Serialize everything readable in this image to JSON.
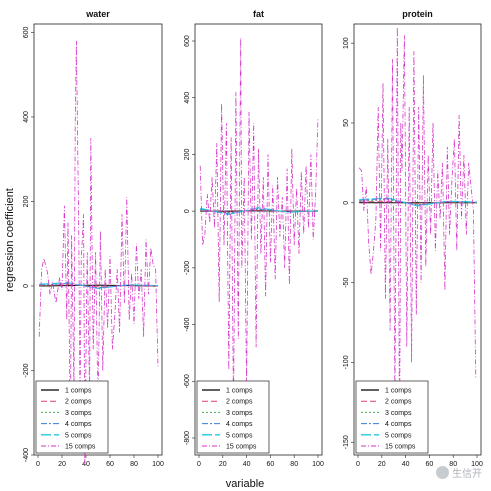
{
  "chart_data": {
    "type": "line",
    "xlabel": "variable",
    "ylabel": "regression coefficient",
    "legend_position": "bottom-left",
    "series_names": [
      "1 comps",
      "2 comps",
      "3 comps",
      "4 comps",
      "5 comps",
      "15 comps"
    ],
    "series_colors": [
      "#000000",
      "#e0406a",
      "#3cb54a",
      "#3a7be0",
      "#27c4e0",
      "#d633c9"
    ],
    "panels": [
      {
        "title": "water",
        "xlim": [
          0,
          100
        ],
        "ylim": [
          -400,
          620
        ],
        "xticks": [
          0,
          20,
          40,
          60,
          80,
          100
        ],
        "yticks": [
          -400,
          -200,
          0,
          200,
          400,
          600
        ],
        "series": [
          {
            "name": "1 comps",
            "x": [
              1,
              25,
              50,
              75,
              100
            ],
            "y": [
              0,
              1,
              2,
              1,
              0
            ]
          },
          {
            "name": "2 comps",
            "x": [
              1,
              25,
              50,
              75,
              100
            ],
            "y": [
              1,
              3,
              -2,
              1,
              0
            ]
          },
          {
            "name": "3 comps",
            "x": [
              1,
              25,
              50,
              75,
              100
            ],
            "y": [
              2,
              5,
              -4,
              2,
              1
            ]
          },
          {
            "name": "4 comps",
            "x": [
              1,
              25,
              50,
              75,
              100
            ],
            "y": [
              3,
              6,
              -5,
              2,
              1
            ]
          },
          {
            "name": "5 comps",
            "x": [
              1,
              25,
              50,
              75,
              100
            ],
            "y": [
              4,
              8,
              -6,
              3,
              1
            ]
          },
          {
            "name": "15 comps",
            "x": [
              1,
              3,
              5,
              8,
              10,
              12,
              15,
              18,
              20,
              22,
              24,
              25,
              27,
              28,
              30,
              31,
              32,
              34,
              35,
              36,
              38,
              39,
              41,
              43,
              44,
              46,
              48,
              50,
              52,
              54,
              56,
              58,
              60,
              62,
              64,
              66,
              68,
              70,
              72,
              74,
              76,
              78,
              80,
              82,
              84,
              86,
              88,
              90,
              92,
              94,
              96,
              98,
              100
            ],
            "y": [
              -120,
              40,
              65,
              30,
              -20,
              10,
              -40,
              20,
              -10,
              190,
              -80,
              150,
              -350,
              120,
              -250,
              380,
              580,
              120,
              -300,
              60,
              170,
              -420,
              80,
              -260,
              350,
              -150,
              80,
              -290,
              130,
              -200,
              40,
              -100,
              70,
              -150,
              -70,
              40,
              -110,
              170,
              -40,
              210,
              -80,
              30,
              -90,
              100,
              -30,
              40,
              -120,
              110,
              -20,
              90,
              50,
              40,
              -190
            ]
          }
        ]
      },
      {
        "title": "fat",
        "xlim": [
          0,
          100
        ],
        "ylim": [
          -860,
          660
        ],
        "xticks": [
          0,
          20,
          40,
          60,
          80,
          100
        ],
        "yticks": [
          -800,
          -600,
          -400,
          -200,
          0,
          200,
          400,
          600
        ],
        "series": [
          {
            "name": "1 comps",
            "x": [
              1,
              25,
              50,
              75,
              100
            ],
            "y": [
              0,
              0,
              1,
              0,
              0
            ]
          },
          {
            "name": "2 comps",
            "x": [
              1,
              25,
              50,
              75,
              100
            ],
            "y": [
              2,
              -3,
              3,
              -1,
              0
            ]
          },
          {
            "name": "3 comps",
            "x": [
              1,
              25,
              50,
              75,
              100
            ],
            "y": [
              4,
              -5,
              5,
              -2,
              1
            ]
          },
          {
            "name": "4 comps",
            "x": [
              1,
              25,
              50,
              75,
              100
            ],
            "y": [
              6,
              -8,
              8,
              -3,
              1
            ]
          },
          {
            "name": "5 comps",
            "x": [
              1,
              25,
              50,
              75,
              100
            ],
            "y": [
              10,
              -12,
              12,
              -4,
              2
            ]
          },
          {
            "name": "15 comps",
            "x": [
              1,
              3,
              5,
              7,
              9,
              11,
              13,
              15,
              17,
              19,
              21,
              23,
              25,
              27,
              29,
              31,
              33,
              35,
              36,
              38,
              40,
              42,
              44,
              46,
              48,
              50,
              52,
              54,
              56,
              58,
              60,
              62,
              64,
              66,
              68,
              70,
              72,
              74,
              76,
              78,
              80,
              82,
              84,
              86,
              88,
              90,
              92,
              94,
              96,
              98,
              100
            ],
            "y": [
              160,
              -120,
              -80,
              60,
              -40,
              120,
              -60,
              240,
              -320,
              380,
              -120,
              310,
              -560,
              260,
              -700,
              420,
              -450,
              610,
              -200,
              120,
              -620,
              350,
              -100,
              310,
              -480,
              220,
              -150,
              120,
              -300,
              200,
              -180,
              90,
              -240,
              120,
              -90,
              50,
              -200,
              150,
              -260,
              220,
              -120,
              80,
              -150,
              140,
              -80,
              160,
              -60,
              200,
              -100,
              60,
              330
            ]
          }
        ]
      },
      {
        "title": "protein",
        "xlim": [
          0,
          100
        ],
        "ylim": [
          -158,
          112
        ],
        "xticks": [
          0,
          20,
          40,
          60,
          80,
          100
        ],
        "yticks": [
          -150,
          -100,
          -50,
          0,
          50,
          100
        ],
        "series": [
          {
            "name": "1 comps",
            "x": [
              1,
              25,
              50,
              75,
              100
            ],
            "y": [
              0,
              0,
              0,
              0,
              0
            ]
          },
          {
            "name": "2 comps",
            "x": [
              1,
              25,
              50,
              75,
              100
            ],
            "y": [
              0.5,
              1,
              -0.5,
              0.3,
              0
            ]
          },
          {
            "name": "3 comps",
            "x": [
              1,
              25,
              50,
              75,
              100
            ],
            "y": [
              1,
              2,
              -1,
              0.5,
              0
            ]
          },
          {
            "name": "4 comps",
            "x": [
              1,
              25,
              50,
              75,
              100
            ],
            "y": [
              1.5,
              2.5,
              -1.5,
              0.8,
              0.3
            ]
          },
          {
            "name": "5 comps",
            "x": [
              1,
              25,
              50,
              75,
              100
            ],
            "y": [
              2,
              3,
              -2,
              1,
              0.5
            ]
          },
          {
            "name": "15 comps",
            "x": [
              1,
              3,
              5,
              7,
              9,
              11,
              13,
              15,
              17,
              19,
              21,
              23,
              25,
              27,
              29,
              31,
              33,
              35,
              36,
              37,
              39,
              41,
              43,
              45,
              47,
              49,
              51,
              53,
              55,
              57,
              59,
              61,
              63,
              65,
              67,
              69,
              71,
              73,
              75,
              77,
              79,
              81,
              83,
              85,
              87,
              89,
              91,
              93,
              95,
              97,
              99
            ],
            "y": [
              22,
              20,
              -5,
              10,
              -25,
              -45,
              -30,
              -10,
              60,
              -30,
              75,
              -60,
              40,
              -80,
              90,
              -120,
              110,
              -150,
              50,
              20,
              105,
              -90,
              60,
              -100,
              95,
              -70,
              60,
              -50,
              80,
              -40,
              30,
              -20,
              50,
              -30,
              20,
              -10,
              25,
              -55,
              35,
              -20,
              15,
              40,
              -30,
              55,
              -10,
              30,
              -20,
              25,
              10,
              -5,
              -110
            ]
          }
        ]
      }
    ]
  },
  "watermark": {
    "text": "生信开"
  }
}
